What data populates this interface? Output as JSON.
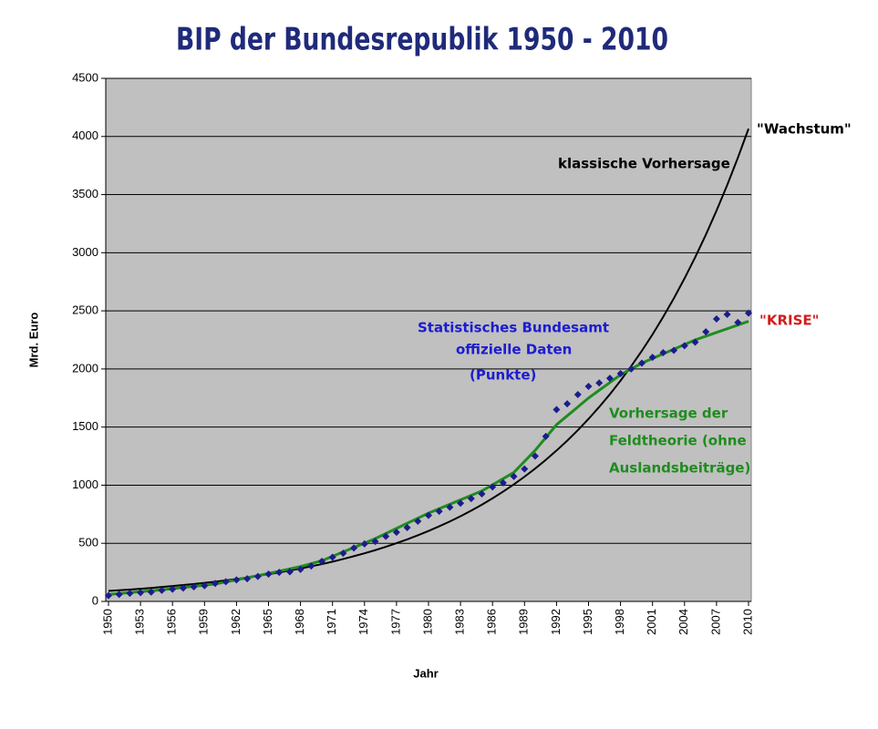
{
  "chart_data": {
    "type": "line",
    "title": "BIP der Bundesrepublik 1950 - 2010",
    "y_label": "Mrd. Euro",
    "x_label": "Jahr",
    "x": [
      1950,
      1951,
      1952,
      1953,
      1954,
      1955,
      1956,
      1957,
      1958,
      1959,
      1960,
      1961,
      1962,
      1963,
      1964,
      1965,
      1966,
      1967,
      1968,
      1969,
      1970,
      1971,
      1972,
      1973,
      1974,
      1975,
      1976,
      1977,
      1978,
      1979,
      1980,
      1981,
      1982,
      1983,
      1984,
      1985,
      1986,
      1987,
      1988,
      1989,
      1990,
      1991,
      1992,
      1993,
      1994,
      1995,
      1996,
      1997,
      1998,
      1999,
      2000,
      2001,
      2002,
      2003,
      2004,
      2005,
      2006,
      2007,
      2008,
      2009,
      2010
    ],
    "xlim": [
      1950,
      2010
    ],
    "xticks": [
      1950,
      1953,
      1956,
      1959,
      1962,
      1965,
      1968,
      1971,
      1974,
      1977,
      1980,
      1983,
      1986,
      1989,
      1992,
      1995,
      1998,
      2001,
      2004,
      2007,
      2010
    ],
    "ylim": [
      0,
      4500
    ],
    "yticks": [
      0,
      500,
      1000,
      1500,
      2000,
      2500,
      3000,
      3500,
      4000,
      4500
    ],
    "grid": true,
    "background": "#c0c0c0",
    "series": [
      {
        "style": "line",
        "color": "#000000",
        "values": [
          90,
          96,
          102,
          109,
          116,
          124,
          132,
          141,
          150,
          160,
          170,
          181,
          193,
          206,
          220,
          234,
          249,
          266,
          283,
          302,
          321,
          342,
          365,
          389,
          414,
          441,
          470,
          501,
          534,
          569,
          606,
          646,
          688,
          733,
          781,
          832,
          887,
          945,
          1007,
          1073,
          1143,
          1218,
          1298,
          1383,
          1473,
          1570,
          1673,
          1782,
          1899,
          2024,
          2156,
          2297,
          2448,
          2608,
          2779,
          2961,
          3155,
          3362,
          3582,
          3817,
          4067
        ]
      },
      {
        "style": "line",
        "color": "#1e8c1e",
        "values": [
          60,
          68,
          76,
          84,
          92,
          100,
          110,
          120,
          130,
          140,
          150,
          168,
          186,
          204,
          222,
          240,
          260,
          280,
          300,
          325,
          350,
          388,
          426,
          464,
          502,
          540,
          584,
          628,
          672,
          716,
          760,
          798,
          836,
          874,
          912,
          950,
          1003,
          1056,
          1110,
          1205,
          1300,
          1410,
          1520,
          1597,
          1673,
          1750,
          1817,
          1883,
          1950,
          2000,
          2050,
          2090,
          2130,
          2170,
          2210,
          2250,
          2282,
          2314,
          2346,
          2378,
          2410
        ]
      },
      {
        "style": "points",
        "color": "#1c1c8c",
        "values": [
          50,
          60,
          70,
          75,
          80,
          95,
          105,
          115,
          125,
          135,
          155,
          170,
          185,
          195,
          215,
          235,
          250,
          255,
          275,
          305,
          345,
          380,
          415,
          460,
          495,
          515,
          560,
          595,
          635,
          690,
          740,
          775,
          810,
          845,
          885,
          925,
          985,
          1020,
          1075,
          1140,
          1250,
          1420,
          1650,
          1700,
          1780,
          1850,
          1880,
          1920,
          1960,
          2000,
          2050,
          2100,
          2140,
          2160,
          2200,
          2230,
          2320,
          2430,
          2470,
          2400,
          2480
        ]
      }
    ],
    "annotations": [
      {
        "color": "#000000",
        "lines": [
          "\"Wachstum\""
        ]
      },
      {
        "color": "#000000",
        "lines": [
          "klassische Vorhersage"
        ]
      },
      {
        "color": "#1c1cd0",
        "lines": [
          "Statistisches Bundesamt",
          "offizielle Daten",
          "(Punkte)"
        ]
      },
      {
        "color": "#d01c1c",
        "lines": [
          "\"KRISE\""
        ]
      },
      {
        "color": "#1e8c1e",
        "lines": [
          "Vorhersage der",
          "Feldtheorie (ohne",
          "Auslandsbeiträge)"
        ]
      }
    ]
  }
}
